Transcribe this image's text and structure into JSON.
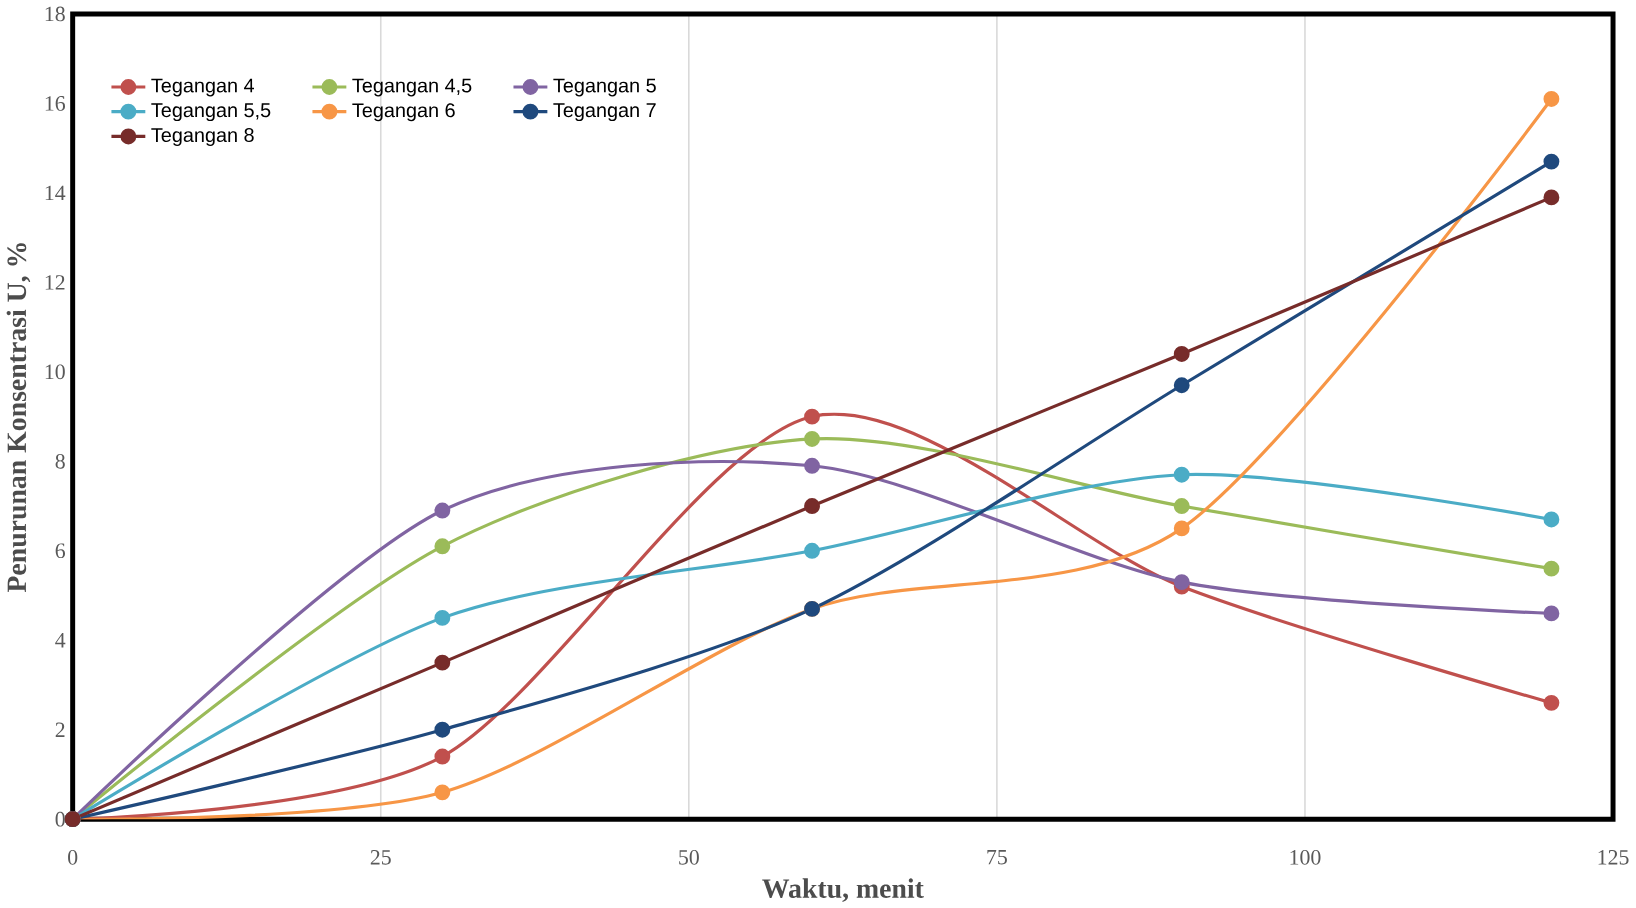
{
  "chart_data": {
    "type": "line",
    "xlabel": "Waktu, menit",
    "ylabel": "Penurunan Konsentrasi U, %",
    "x": [
      0,
      30,
      60,
      90,
      120
    ],
    "series": [
      {
        "name": "Tegangan 4",
        "color": "#c0504d",
        "values": [
          0,
          1.4,
          9.0,
          5.2,
          2.6
        ]
      },
      {
        "name": "Tegangan 4,5",
        "color": "#9bbb59",
        "values": [
          0,
          6.1,
          8.5,
          7.0,
          5.6
        ]
      },
      {
        "name": "Tegangan 5",
        "color": "#8064a2",
        "values": [
          0,
          6.9,
          7.9,
          5.3,
          4.6
        ]
      },
      {
        "name": "Tegangan 5,5",
        "color": "#4bacc6",
        "values": [
          0,
          4.5,
          6.0,
          7.7,
          6.7
        ]
      },
      {
        "name": "Tegangan 6",
        "color": "#f79646",
        "values": [
          0,
          0.6,
          4.7,
          6.5,
          16.1
        ]
      },
      {
        "name": "Tegangan 7",
        "color": "#1f497d",
        "values": [
          0,
          2.0,
          4.7,
          9.7,
          14.7
        ]
      },
      {
        "name": "Tegangan 8",
        "color": "#772c2a",
        "values": [
          0,
          3.5,
          7.0,
          10.4,
          13.9
        ]
      }
    ],
    "xlim": [
      0,
      125
    ],
    "ylim": [
      0,
      18
    ],
    "xticks": [
      0,
      25,
      50,
      75,
      100,
      125
    ],
    "yticks": [
      0,
      2,
      4,
      6,
      8,
      10,
      12,
      14,
      16,
      18
    ],
    "grid": "x",
    "legend": "top left",
    "marker": "circle",
    "line_style": "solid"
  }
}
